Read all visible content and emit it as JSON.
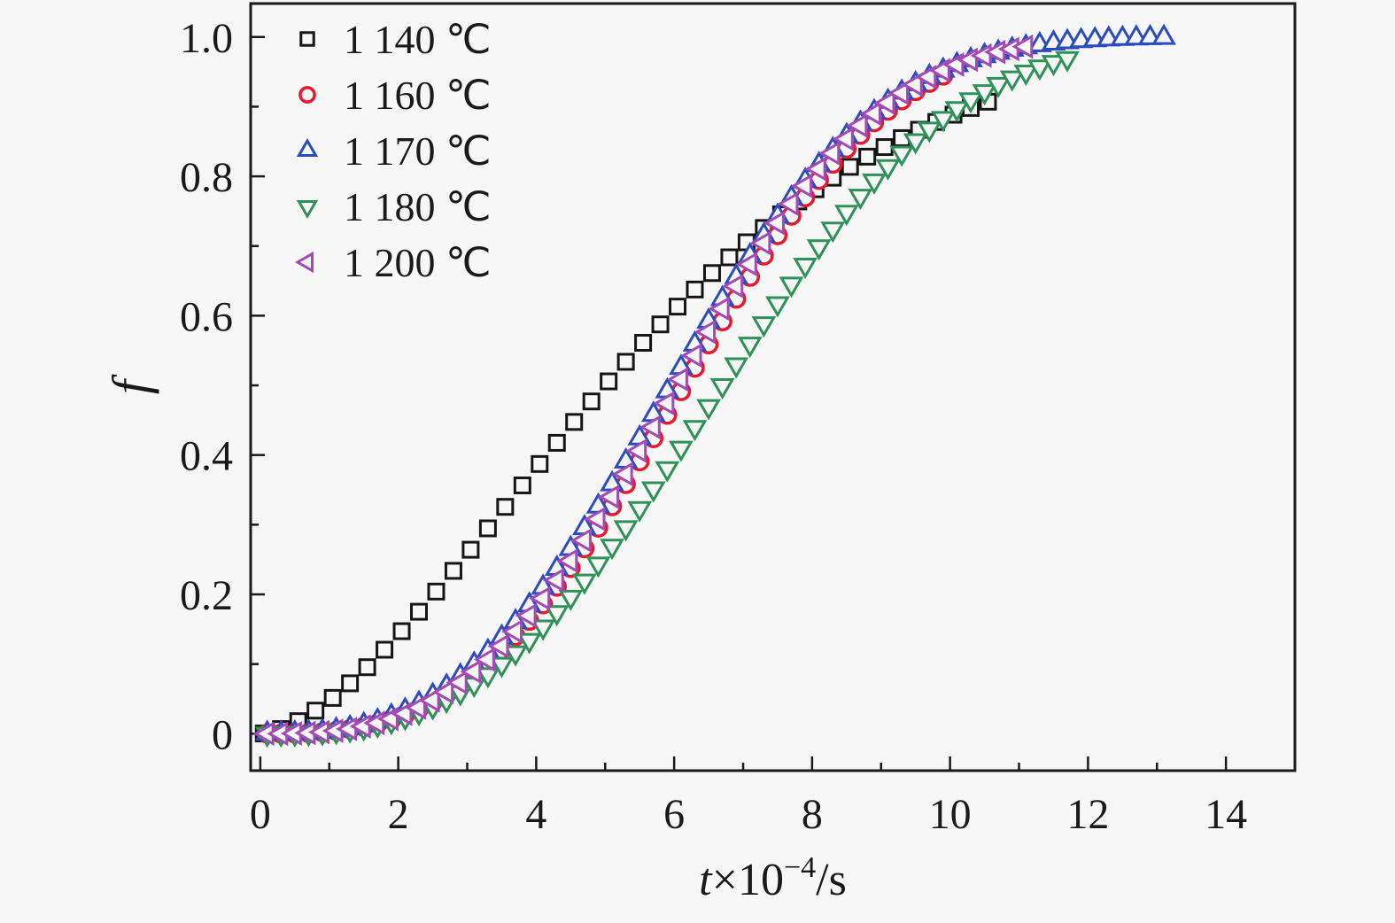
{
  "figure": {
    "background": "#f7f7f7",
    "axis_color": "#1a1a1a",
    "text_color": "#1a1a1a"
  },
  "chart_data": {
    "type": "scatter",
    "title": "",
    "ylabel": "f",
    "xlabel": {
      "display": "t×10⁻⁴/s",
      "var": "t",
      "prefix": "×10",
      "exponent": "−4",
      "suffix": "/s"
    },
    "xlim": [
      -0.14,
      15.0
    ],
    "ylim": [
      -0.053,
      1.048
    ],
    "x_major_ticks": [
      0,
      2,
      4,
      6,
      8,
      10,
      12,
      14
    ],
    "x_minor_ticks": [
      1,
      3,
      5,
      7,
      9,
      11,
      13,
      15
    ],
    "x_tick_labels": [
      "0",
      "2",
      "4",
      "6",
      "8",
      "10",
      "12",
      "14"
    ],
    "y_major_ticks": [
      0,
      0.2,
      0.4,
      0.6,
      0.8,
      1.0
    ],
    "y_minor_ticks": [
      0.1,
      0.3,
      0.5,
      0.7,
      0.9
    ],
    "y_tick_labels": [
      "0",
      "0.2",
      "0.4",
      "0.6",
      "0.8",
      "1.0"
    ],
    "grid": false,
    "legend_position": "top-left",
    "series": [
      {
        "name": "1 140 ℃",
        "marker": "square",
        "color": "#151515",
        "model": {
          "type": "avrami",
          "n": 1.65,
          "t50": 5.0
        },
        "t_start": 0.05,
        "t_end": 10.75,
        "t_step": 0.25,
        "sample_points": {
          "t": [
            0,
            1,
            2,
            3,
            4,
            5,
            6,
            7,
            8,
            9,
            10,
            10.7
          ],
          "f": [
            0,
            0.048,
            0.142,
            0.258,
            0.381,
            0.5,
            0.608,
            0.701,
            0.778,
            0.839,
            0.886,
            0.91
          ]
        }
      },
      {
        "name": "1 160 ℃",
        "marker": "circle",
        "color": "#e8192d",
        "model": {
          "type": "avrami",
          "n": 3.0,
          "t50": 6.15
        },
        "t_start": 0.1,
        "t_end": 9.9,
        "t_step": 0.2,
        "sample_points": {
          "t": [
            0,
            1,
            2,
            3,
            4,
            5,
            6,
            7,
            8,
            9,
            9.9
          ],
          "f": [
            0,
            0.003,
            0.024,
            0.077,
            0.174,
            0.311,
            0.475,
            0.64,
            0.782,
            0.886,
            0.944
          ]
        }
      },
      {
        "name": "1 170 ℃",
        "marker": "triangle-up",
        "color": "#2b4bc0",
        "model": {
          "type": "avrami",
          "n": 2.9,
          "t50": 5.95
        },
        "t_start": 0.1,
        "t_end": 13.2,
        "t_step": 0.2,
        "sample_points": {
          "t": [
            0,
            1,
            2,
            3,
            4,
            5,
            6,
            7,
            8,
            9,
            10,
            11,
            12,
            13.2
          ],
          "f": [
            0,
            0.004,
            0.029,
            0.091,
            0.197,
            0.342,
            0.508,
            0.671,
            0.805,
            0.9,
            0.956,
            0.984,
            0.995,
            0.999
          ]
        }
      },
      {
        "name": "1 180 ℃",
        "marker": "triangle-down",
        "color": "#2e9158",
        "model": {
          "type": "avrami",
          "n": 2.9,
          "t50": 6.7
        },
        "t_start": 0.1,
        "t_end": 11.7,
        "t_step": 0.2,
        "sample_points": {
          "t": [
            0,
            1,
            2,
            3,
            4,
            5,
            6,
            7,
            8,
            9,
            10,
            11,
            11.7
          ],
          "f": [
            0,
            0.003,
            0.021,
            0.065,
            0.144,
            0.257,
            0.395,
            0.545,
            0.686,
            0.804,
            0.891,
            0.946,
            0.97
          ]
        }
      },
      {
        "name": "1 200 ℃",
        "marker": "triangle-left",
        "color": "#a44ab4",
        "model": {
          "type": "avrami",
          "n": 3.0,
          "t50": 6.05
        },
        "t_start": 0.1,
        "t_end": 11.2,
        "t_step": 0.2,
        "sample_points": {
          "t": [
            0,
            1,
            2,
            3,
            4,
            5,
            6,
            7,
            8,
            9,
            10,
            11.2
          ],
          "f": [
            0,
            0.003,
            0.025,
            0.081,
            0.182,
            0.324,
            0.491,
            0.658,
            0.799,
            0.898,
            0.956,
            0.988
          ]
        }
      }
    ]
  }
}
